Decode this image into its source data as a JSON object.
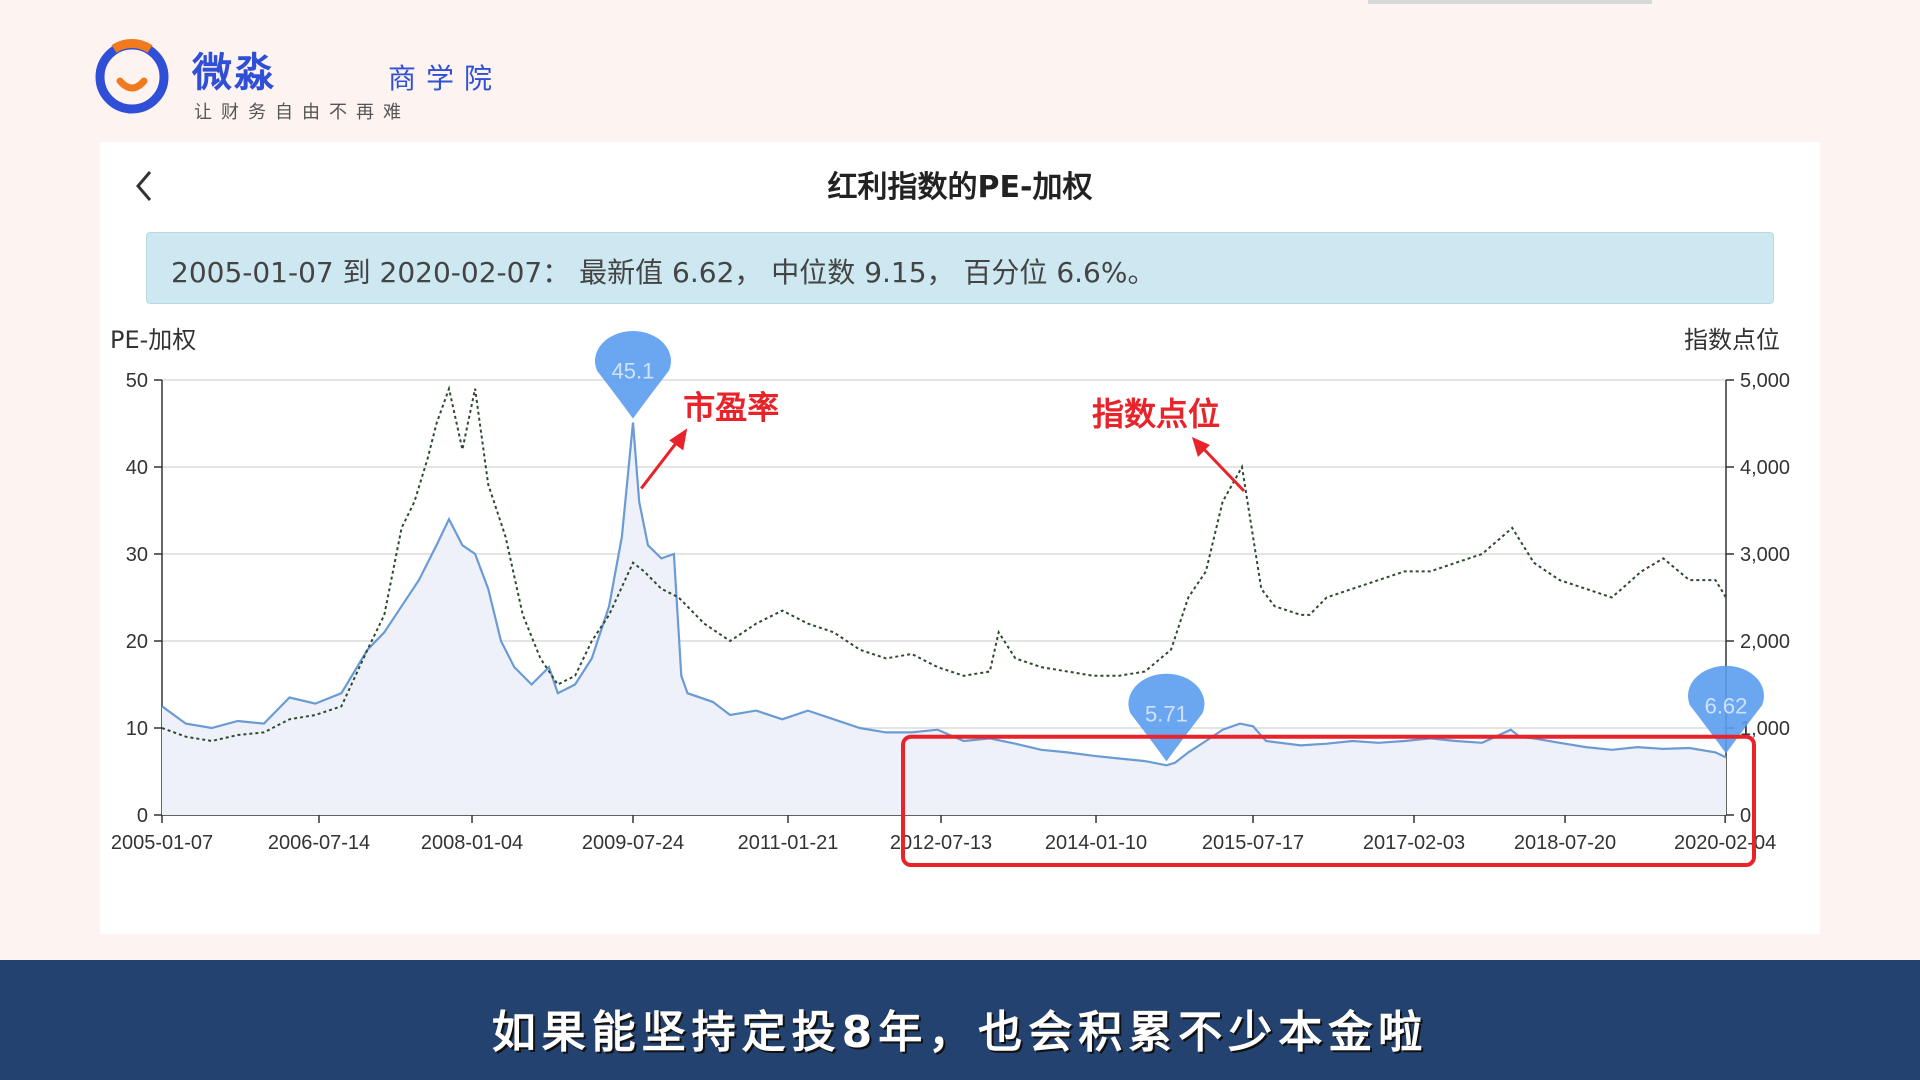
{
  "logo": {
    "name": "微淼",
    "sub": "商学院",
    "slogan": "让财务自由不再难"
  },
  "header": {
    "title": "红利指数的PE-加权"
  },
  "banner": {
    "text": "2005-01-07 到 2020-02-07： 最新值 6.62， 中位数 9.15， 百分位 6.6%。"
  },
  "subtitle": "如果能坚持定投8年，也会积累不少本金啦",
  "colors": {
    "pe_line": "#6b9bd4",
    "pe_fill": "#eef1fa",
    "index_line": "#2d4a2d",
    "annotation": "#e8232a",
    "marker": "#5b9cf0",
    "highlight_box": "#e8232a"
  },
  "chart_data": {
    "type": "line",
    "ylabel": "PE-加权",
    "y2label": "指数点位",
    "ylim": [
      0,
      50
    ],
    "y2lim": [
      0,
      5000
    ],
    "y_ticks": [
      0,
      10,
      20,
      30,
      40,
      50
    ],
    "y2_tick_labels": [
      "0",
      "1,000",
      "2,000",
      "3,000",
      "4,000",
      "5,000"
    ],
    "x_tick_labels": [
      "2005-01-07",
      "2006-07-14",
      "2008-01-04",
      "2009-07-24",
      "2011-01-21",
      "2012-07-13",
      "2014-01-10",
      "2015-07-17",
      "2017-02-03",
      "2018-07-20",
      "2020-02-04"
    ],
    "grid": true,
    "series": [
      {
        "axis": "left",
        "style": "solid-area",
        "x": [
          "2005-01-07",
          "2005-04-01",
          "2005-07-01",
          "2005-10-01",
          "2006-01-01",
          "2006-04-01",
          "2006-07-01",
          "2006-10-01",
          "2007-01-01",
          "2007-03-01",
          "2007-05-01",
          "2007-07-01",
          "2007-09-01",
          "2007-10-15",
          "2007-12-01",
          "2008-01-15",
          "2008-03-01",
          "2008-04-15",
          "2008-06-01",
          "2008-08-01",
          "2008-10-01",
          "2008-11-01",
          "2009-01-01",
          "2009-03-01",
          "2009-05-01",
          "2009-06-15",
          "2009-07-24",
          "2009-08-15",
          "2009-09-15",
          "2009-11-01",
          "2009-12-15",
          "2010-01-10",
          "2010-02-01",
          "2010-05-01",
          "2010-07-01",
          "2010-10-01",
          "2011-01-01",
          "2011-04-01",
          "2011-07-01",
          "2011-10-01",
          "2012-01-01",
          "2012-04-01",
          "2012-07-01",
          "2012-10-01",
          "2013-01-01",
          "2013-04-01",
          "2013-07-01",
          "2013-10-01",
          "2014-01-01",
          "2014-04-01",
          "2014-07-01",
          "2014-09-15",
          "2014-10-15",
          "2014-12-01",
          "2015-02-01",
          "2015-04-01",
          "2015-06-01",
          "2015-07-17",
          "2015-09-01",
          "2016-01-01",
          "2016-04-01",
          "2016-07-01",
          "2016-10-01",
          "2017-01-01",
          "2017-04-01",
          "2017-07-01",
          "2017-10-01",
          "2018-01-10",
          "2018-02-10",
          "2018-04-01",
          "2018-07-01",
          "2018-10-01",
          "2019-01-01",
          "2019-04-01",
          "2019-07-01",
          "2019-10-01",
          "2020-01-01",
          "2020-02-07"
        ],
        "values": [
          12.5,
          10.5,
          10,
          10.8,
          10.5,
          13.5,
          12.8,
          14,
          19,
          21,
          24,
          27,
          31,
          34,
          31,
          30,
          26,
          20,
          17,
          15,
          17,
          14,
          15,
          18,
          24,
          32,
          45.1,
          36,
          31,
          29.5,
          30,
          16,
          14,
          13,
          11.5,
          12,
          11,
          12,
          11,
          10,
          9.5,
          9.5,
          9.8,
          8.5,
          8.8,
          8.2,
          7.5,
          7.2,
          6.8,
          6.5,
          6.2,
          5.71,
          6,
          7.2,
          8.5,
          9.8,
          10.5,
          10.2,
          8.5,
          8,
          8.2,
          8.5,
          8.3,
          8.5,
          8.8,
          8.5,
          8.3,
          9.8,
          9,
          8.8,
          8.3,
          7.8,
          7.5,
          7.8,
          7.6,
          7.7,
          7.2,
          6.62
        ]
      },
      {
        "axis": "right",
        "style": "dotted",
        "x": [
          "2005-01-07",
          "2005-04-01",
          "2005-07-01",
          "2005-10-01",
          "2006-01-01",
          "2006-04-01",
          "2006-07-01",
          "2006-10-01",
          "2007-01-01",
          "2007-03-01",
          "2007-05-01",
          "2007-06-15",
          "2007-08-01",
          "2007-09-01",
          "2007-10-15",
          "2007-12-01",
          "2008-01-15",
          "2008-03-01",
          "2008-05-01",
          "2008-07-01",
          "2008-09-01",
          "2008-11-01",
          "2009-01-01",
          "2009-03-01",
          "2009-05-01",
          "2009-07-24",
          "2009-09-01",
          "2009-11-01",
          "2010-01-01",
          "2010-04-01",
          "2010-07-01",
          "2010-10-01",
          "2011-01-01",
          "2011-04-01",
          "2011-07-01",
          "2011-10-01",
          "2012-01-01",
          "2012-04-01",
          "2012-07-01",
          "2012-10-01",
          "2013-01-01",
          "2013-02-01",
          "2013-04-01",
          "2013-07-01",
          "2013-10-01",
          "2014-01-01",
          "2014-04-01",
          "2014-07-01",
          "2014-10-01",
          "2014-12-01",
          "2015-02-01",
          "2015-04-01",
          "2015-06-08",
          "2015-07-17",
          "2015-08-15",
          "2015-10-01",
          "2016-01-01",
          "2016-02-01",
          "2016-04-01",
          "2016-07-01",
          "2016-10-01",
          "2017-01-01",
          "2017-04-01",
          "2017-07-01",
          "2017-10-01",
          "2018-01-15",
          "2018-04-01",
          "2018-07-01",
          "2018-10-01",
          "2019-01-01",
          "2019-04-15",
          "2019-07-01",
          "2019-10-01",
          "2020-01-01",
          "2020-02-07"
        ],
        "values": [
          1000,
          900,
          850,
          920,
          950,
          1100,
          1150,
          1250,
          1900,
          2300,
          3300,
          3600,
          4100,
          4500,
          4900,
          4200,
          4900,
          3800,
          3200,
          2300,
          1800,
          1500,
          1600,
          2000,
          2300,
          2900,
          2800,
          2600,
          2500,
          2200,
          2000,
          2200,
          2350,
          2200,
          2100,
          1900,
          1800,
          1850,
          1700,
          1600,
          1650,
          2100,
          1800,
          1700,
          1650,
          1600,
          1600,
          1650,
          1900,
          2500,
          2800,
          3600,
          4000,
          3200,
          2600,
          2400,
          2300,
          2300,
          2500,
          2600,
          2700,
          2800,
          2800,
          2900,
          3000,
          3300,
          2900,
          2700,
          2600,
          2500,
          2800,
          2950,
          2700,
          2700,
          2500
        ]
      }
    ],
    "markers": [
      {
        "label": "45.1",
        "x": "2009-07-24",
        "value": 45.1
      },
      {
        "label": "5.71",
        "x": "2014-09-15",
        "value": 5.71
      },
      {
        "label": "6.62",
        "x": "2020-02-07",
        "value": 6.62
      }
    ],
    "annotations": [
      {
        "text": "市盈率",
        "x": "2009-08-15",
        "value": 38
      },
      {
        "text": "指数点位",
        "x": "2015-06-08",
        "value": 40
      }
    ],
    "highlight_range": {
      "x_from": "2012-07-13",
      "x_to": "2020-02-07"
    }
  }
}
